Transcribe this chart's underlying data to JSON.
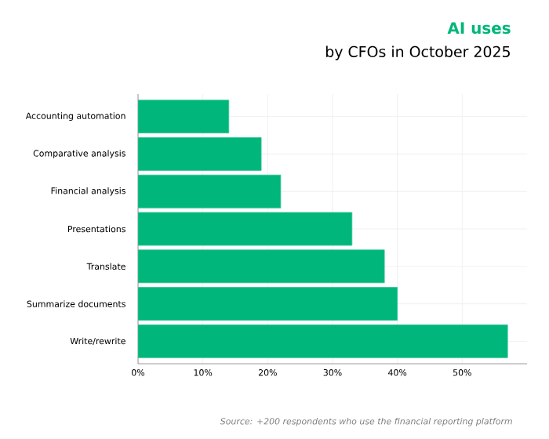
{
  "chart_data": {
    "type": "bar",
    "orientation": "horizontal",
    "title": "AI uses",
    "subtitle": "by CFOs in October 2025",
    "categories": [
      "Accounting automation",
      "Comparative analysis",
      "Financial analysis",
      "Presentations",
      "Translate",
      "Summarize documents",
      "Write/rewrite"
    ],
    "values": [
      14,
      19,
      22,
      33,
      38,
      40,
      57
    ],
    "color": "#00b67a",
    "xlim": [
      0,
      60
    ],
    "xticks": [
      {
        "value": 0,
        "label": "0%"
      },
      {
        "value": 10,
        "label": "10%"
      },
      {
        "value": 20,
        "label": "20%"
      },
      {
        "value": 30,
        "label": "30%"
      },
      {
        "value": 40,
        "label": "40%"
      },
      {
        "value": 50,
        "label": "50%"
      }
    ],
    "grid": true,
    "annotations": [
      "Source: +200 respondents who use the financial reporting platform"
    ]
  }
}
